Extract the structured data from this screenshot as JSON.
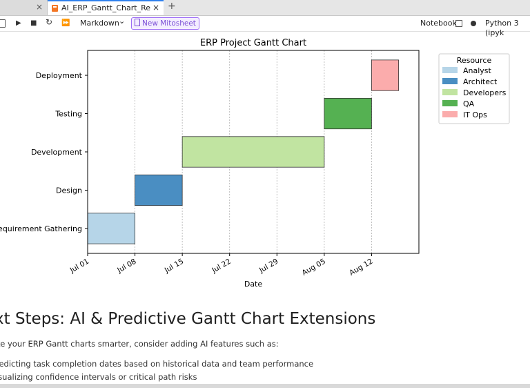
{
  "tabs": {
    "prev_close": "×",
    "active_title": "AI_ERP_Gantt_Chart_Repor",
    "active_close": "×",
    "add": "+"
  },
  "toolbar": {
    "run_icon": "▶",
    "stop_icon": "■",
    "restart_icon": "↻",
    "run_all_icon": "⏩",
    "cell_type": "Markdown",
    "cell_type_arrow": "⌄",
    "mito_label": "New Mitosheet",
    "notebook_label": "Notebook",
    "kernel_label": "Python 3 (ipyk"
  },
  "chart_data": {
    "type": "gantt",
    "title": "ERP Project Gantt Chart",
    "xlabel": "Date",
    "ylabel": "",
    "x_tick_labels": [
      "Jul 01",
      "Jul 08",
      "Jul 15",
      "Jul 22",
      "Jul 29",
      "Aug 05",
      "Aug 12"
    ],
    "x_ticks": [
      "2024-07-01",
      "2024-07-08",
      "2024-07-15",
      "2024-07-22",
      "2024-07-29",
      "2024-08-05",
      "2024-08-12"
    ],
    "xlim": [
      "2024-07-01",
      "2024-08-19"
    ],
    "grid_x": true,
    "tasks": [
      {
        "task": "Requirement Gathering",
        "label": "equirement Gathering",
        "start": "2024-07-01",
        "end": "2024-07-08",
        "resource": "Analyst"
      },
      {
        "task": "Design",
        "label": "Design",
        "start": "2024-07-08",
        "end": "2024-07-15",
        "resource": "Architect"
      },
      {
        "task": "Development",
        "label": "Development",
        "start": "2024-07-15",
        "end": "2024-08-05",
        "resource": "Developers"
      },
      {
        "task": "Testing",
        "label": "Testing",
        "start": "2024-08-05",
        "end": "2024-08-12",
        "resource": "QA"
      },
      {
        "task": "Deployment",
        "label": "Deployment",
        "start": "2024-08-12",
        "end": "2024-08-16",
        "resource": "IT Ops"
      }
    ],
    "legend": {
      "title": "Resource",
      "placement": "outside-right",
      "entries": [
        {
          "name": "Analyst",
          "color": "#b6d5e8"
        },
        {
          "name": "Architect",
          "color": "#4a8ec2"
        },
        {
          "name": "Developers",
          "color": "#c1e4a1"
        },
        {
          "name": "QA",
          "color": "#55b152"
        },
        {
          "name": "IT Ops",
          "color": "#fbacac"
        }
      ]
    }
  },
  "markdown": {
    "heading": "xt Steps: AI & Predictive Gantt Chart Extensions",
    "intro": "ke your ERP Gantt charts smarter, consider adding AI features such as:",
    "items": [
      "redicting task completion dates based on historical data and team performance",
      "isualizing confidence intervals or critical path risks"
    ]
  }
}
